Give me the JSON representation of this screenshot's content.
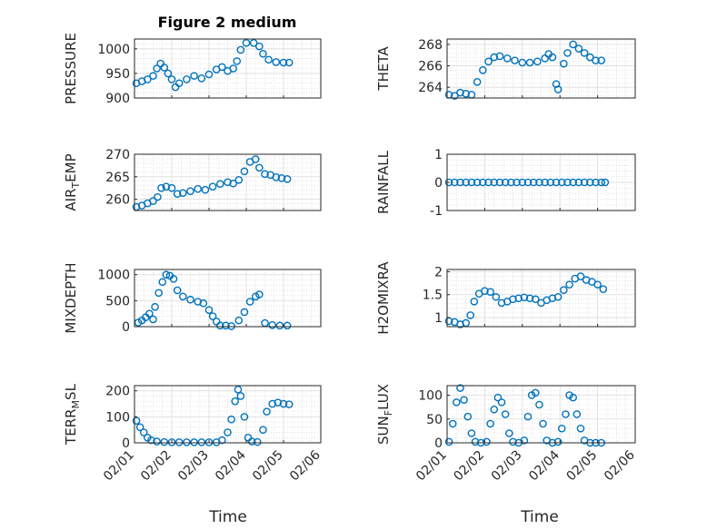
{
  "figure": {
    "title": "Figure 2 medium",
    "marker_color": "#0072BD",
    "xlabel": "Time"
  },
  "x_ticks": [
    "02/01",
    "02/02",
    "02/03",
    "02/04",
    "02/05",
    "02/06"
  ],
  "chart_data": [
    {
      "type": "scatter",
      "ylabel": "PRESSURE",
      "ylim": [
        900,
        1020
      ],
      "yticks": [
        900,
        950,
        1000
      ],
      "xlim": [
        0,
        5
      ],
      "grid": true,
      "series": [
        {
          "values": [
            [
              0.05,
              930
            ],
            [
              0.2,
              934
            ],
            [
              0.35,
              938
            ],
            [
              0.5,
              945
            ],
            [
              0.6,
              960
            ],
            [
              0.7,
              970
            ],
            [
              0.8,
              962
            ],
            [
              0.9,
              950
            ],
            [
              1.0,
              938
            ],
            [
              1.1,
              922
            ],
            [
              1.2,
              930
            ],
            [
              1.4,
              938
            ],
            [
              1.6,
              945
            ],
            [
              1.8,
              940
            ],
            [
              2.0,
              948
            ],
            [
              2.2,
              958
            ],
            [
              2.35,
              963
            ],
            [
              2.5,
              955
            ],
            [
              2.65,
              960
            ],
            [
              2.75,
              975
            ],
            [
              2.85,
              998
            ],
            [
              3.0,
              1012
            ],
            [
              3.2,
              1012
            ],
            [
              3.35,
              1005
            ],
            [
              3.45,
              990
            ],
            [
              3.6,
              978
            ],
            [
              3.8,
              973
            ],
            [
              4.0,
              972
            ],
            [
              4.15,
              972
            ]
          ]
        }
      ]
    },
    {
      "type": "scatter",
      "ylabel": "THETA",
      "ylim": [
        263,
        268.5
      ],
      "yticks": [
        264,
        266,
        268
      ],
      "xlim": [
        0,
        5
      ],
      "grid": true,
      "series": [
        {
          "values": [
            [
              0.05,
              263.3
            ],
            [
              0.2,
              263.2
            ],
            [
              0.35,
              263.5
            ],
            [
              0.5,
              263.4
            ],
            [
              0.65,
              263.3
            ],
            [
              0.8,
              264.5
            ],
            [
              0.95,
              265.6
            ],
            [
              1.1,
              266.4
            ],
            [
              1.25,
              266.8
            ],
            [
              1.4,
              266.9
            ],
            [
              1.6,
              266.7
            ],
            [
              1.8,
              266.5
            ],
            [
              2.0,
              266.3
            ],
            [
              2.2,
              266.3
            ],
            [
              2.4,
              266.4
            ],
            [
              2.6,
              266.7
            ],
            [
              2.7,
              267.1
            ],
            [
              2.8,
              266.8
            ],
            [
              2.9,
              264.3
            ],
            [
              2.95,
              263.8
            ],
            [
              3.1,
              266.2
            ],
            [
              3.2,
              267.2
            ],
            [
              3.35,
              268.0
            ],
            [
              3.5,
              267.6
            ],
            [
              3.65,
              267.2
            ],
            [
              3.8,
              266.8
            ],
            [
              3.95,
              266.5
            ],
            [
              4.1,
              266.5
            ]
          ]
        }
      ]
    },
    {
      "type": "scatter",
      "ylabel": "AIR_TEMP",
      "ylim": [
        257.5,
        270
      ],
      "yticks": [
        260,
        265,
        270
      ],
      "xlim": [
        0,
        5
      ],
      "grid": true,
      "series": [
        {
          "values": [
            [
              0.05,
              258.3
            ],
            [
              0.2,
              258.6
            ],
            [
              0.35,
              259.1
            ],
            [
              0.5,
              259.6
            ],
            [
              0.62,
              260.5
            ],
            [
              0.72,
              262.5
            ],
            [
              0.85,
              262.8
            ],
            [
              1.0,
              262.5
            ],
            [
              1.15,
              261.2
            ],
            [
              1.3,
              261.4
            ],
            [
              1.5,
              261.8
            ],
            [
              1.7,
              262.3
            ],
            [
              1.9,
              262.1
            ],
            [
              2.1,
              262.8
            ],
            [
              2.3,
              263.4
            ],
            [
              2.5,
              263.8
            ],
            [
              2.65,
              263.5
            ],
            [
              2.8,
              264.3
            ],
            [
              2.95,
              266.2
            ],
            [
              3.1,
              268.3
            ],
            [
              3.25,
              268.9
            ],
            [
              3.35,
              267.0
            ],
            [
              3.5,
              265.6
            ],
            [
              3.65,
              265.4
            ],
            [
              3.8,
              264.9
            ],
            [
              3.95,
              264.7
            ],
            [
              4.1,
              264.5
            ]
          ]
        }
      ]
    },
    {
      "type": "scatter",
      "ylabel": "RAINFALL",
      "ylim": [
        -1,
        1
      ],
      "yticks": [
        -1,
        0,
        1
      ],
      "xlim": [
        0,
        5
      ],
      "grid": true,
      "series": [
        {
          "values": [
            [
              0.05,
              0
            ],
            [
              0.2,
              0
            ],
            [
              0.35,
              0
            ],
            [
              0.5,
              0
            ],
            [
              0.65,
              0
            ],
            [
              0.8,
              0
            ],
            [
              0.95,
              0
            ],
            [
              1.1,
              0
            ],
            [
              1.25,
              0
            ],
            [
              1.4,
              0
            ],
            [
              1.55,
              0
            ],
            [
              1.7,
              0
            ],
            [
              1.85,
              0
            ],
            [
              2.0,
              0
            ],
            [
              2.15,
              0
            ],
            [
              2.3,
              0
            ],
            [
              2.45,
              0
            ],
            [
              2.6,
              0
            ],
            [
              2.75,
              0
            ],
            [
              2.9,
              0
            ],
            [
              3.05,
              0
            ],
            [
              3.2,
              0
            ],
            [
              3.35,
              0
            ],
            [
              3.5,
              0
            ],
            [
              3.65,
              0
            ],
            [
              3.8,
              0
            ],
            [
              3.95,
              0
            ],
            [
              4.1,
              0
            ],
            [
              4.2,
              0
            ]
          ]
        }
      ]
    },
    {
      "type": "scatter",
      "ylabel": "MIXDEPTH",
      "ylim": [
        0,
        1100
      ],
      "yticks": [
        0,
        500,
        1000
      ],
      "xlim": [
        0,
        5
      ],
      "grid": true,
      "series": [
        {
          "values": [
            [
              0.1,
              80
            ],
            [
              0.2,
              120
            ],
            [
              0.3,
              180
            ],
            [
              0.4,
              250
            ],
            [
              0.5,
              140
            ],
            [
              0.55,
              380
            ],
            [
              0.65,
              650
            ],
            [
              0.75,
              860
            ],
            [
              0.85,
              1000
            ],
            [
              0.95,
              980
            ],
            [
              1.05,
              920
            ],
            [
              1.15,
              700
            ],
            [
              1.3,
              580
            ],
            [
              1.5,
              520
            ],
            [
              1.7,
              480
            ],
            [
              1.85,
              450
            ],
            [
              2.0,
              320
            ],
            [
              2.1,
              200
            ],
            [
              2.2,
              100
            ],
            [
              2.3,
              20
            ],
            [
              2.45,
              20
            ],
            [
              2.6,
              10
            ],
            [
              2.8,
              120
            ],
            [
              2.95,
              280
            ],
            [
              3.1,
              480
            ],
            [
              3.25,
              580
            ],
            [
              3.35,
              620
            ],
            [
              3.5,
              70
            ],
            [
              3.7,
              30
            ],
            [
              3.9,
              20
            ],
            [
              4.1,
              20
            ]
          ]
        }
      ]
    },
    {
      "type": "scatter",
      "ylabel": "H2OMIXRA",
      "ylim": [
        0.8,
        2.05
      ],
      "yticks": [
        1,
        1.5,
        2
      ],
      "xlim": [
        0,
        5
      ],
      "grid": true,
      "series": [
        {
          "values": [
            [
              0.05,
              0.92
            ],
            [
              0.2,
              0.9
            ],
            [
              0.35,
              0.85
            ],
            [
              0.5,
              0.88
            ],
            [
              0.62,
              1.05
            ],
            [
              0.72,
              1.35
            ],
            [
              0.85,
              1.52
            ],
            [
              1.0,
              1.58
            ],
            [
              1.15,
              1.56
            ],
            [
              1.3,
              1.45
            ],
            [
              1.45,
              1.32
            ],
            [
              1.6,
              1.35
            ],
            [
              1.75,
              1.4
            ],
            [
              1.9,
              1.42
            ],
            [
              2.05,
              1.44
            ],
            [
              2.2,
              1.42
            ],
            [
              2.35,
              1.4
            ],
            [
              2.5,
              1.32
            ],
            [
              2.65,
              1.38
            ],
            [
              2.8,
              1.42
            ],
            [
              2.95,
              1.45
            ],
            [
              3.1,
              1.6
            ],
            [
              3.25,
              1.72
            ],
            [
              3.4,
              1.85
            ],
            [
              3.55,
              1.9
            ],
            [
              3.7,
              1.82
            ],
            [
              3.85,
              1.78
            ],
            [
              4.0,
              1.72
            ],
            [
              4.15,
              1.62
            ]
          ]
        }
      ]
    },
    {
      "type": "scatter",
      "ylabel": "TERR_MSL",
      "ylim": [
        0,
        220
      ],
      "yticks": [
        0,
        100,
        200
      ],
      "xlim": [
        0,
        5
      ],
      "grid": true,
      "series": [
        {
          "values": [
            [
              0.05,
              85
            ],
            [
              0.15,
              60
            ],
            [
              0.25,
              40
            ],
            [
              0.35,
              20
            ],
            [
              0.45,
              10
            ],
            [
              0.6,
              5
            ],
            [
              0.8,
              3
            ],
            [
              1.0,
              2
            ],
            [
              1.2,
              2
            ],
            [
              1.4,
              2
            ],
            [
              1.6,
              2
            ],
            [
              1.8,
              2
            ],
            [
              2.0,
              2
            ],
            [
              2.2,
              2
            ],
            [
              2.35,
              10
            ],
            [
              2.5,
              40
            ],
            [
              2.6,
              90
            ],
            [
              2.7,
              160
            ],
            [
              2.78,
              205
            ],
            [
              2.85,
              180
            ],
            [
              2.95,
              100
            ],
            [
              3.05,
              20
            ],
            [
              3.15,
              5
            ],
            [
              3.3,
              3
            ],
            [
              3.45,
              50
            ],
            [
              3.55,
              120
            ],
            [
              3.7,
              150
            ],
            [
              3.85,
              155
            ],
            [
              4.0,
              150
            ],
            [
              4.15,
              148
            ]
          ]
        }
      ]
    },
    {
      "type": "scatter",
      "ylabel": "SUN_FLUX",
      "ylim": [
        0,
        120
      ],
      "yticks": [
        0,
        50,
        100
      ],
      "xlim": [
        0,
        5
      ],
      "grid": true,
      "series": [
        {
          "values": [
            [
              0.05,
              2
            ],
            [
              0.15,
              40
            ],
            [
              0.25,
              85
            ],
            [
              0.35,
              115
            ],
            [
              0.45,
              90
            ],
            [
              0.55,
              55
            ],
            [
              0.65,
              20
            ],
            [
              0.75,
              2
            ],
            [
              0.9,
              0
            ],
            [
              1.05,
              2
            ],
            [
              1.15,
              40
            ],
            [
              1.25,
              70
            ],
            [
              1.35,
              95
            ],
            [
              1.45,
              85
            ],
            [
              1.55,
              60
            ],
            [
              1.65,
              20
            ],
            [
              1.75,
              2
            ],
            [
              1.9,
              0
            ],
            [
              2.05,
              5
            ],
            [
              2.15,
              55
            ],
            [
              2.25,
              100
            ],
            [
              2.35,
              105
            ],
            [
              2.45,
              80
            ],
            [
              2.55,
              40
            ],
            [
              2.65,
              5
            ],
            [
              2.8,
              0
            ],
            [
              2.95,
              2
            ],
            [
              3.05,
              30
            ],
            [
              3.15,
              60
            ],
            [
              3.25,
              100
            ],
            [
              3.35,
              95
            ],
            [
              3.45,
              60
            ],
            [
              3.55,
              30
            ],
            [
              3.65,
              5
            ],
            [
              3.8,
              0
            ],
            [
              3.95,
              0
            ],
            [
              4.1,
              0
            ]
          ]
        }
      ]
    }
  ]
}
